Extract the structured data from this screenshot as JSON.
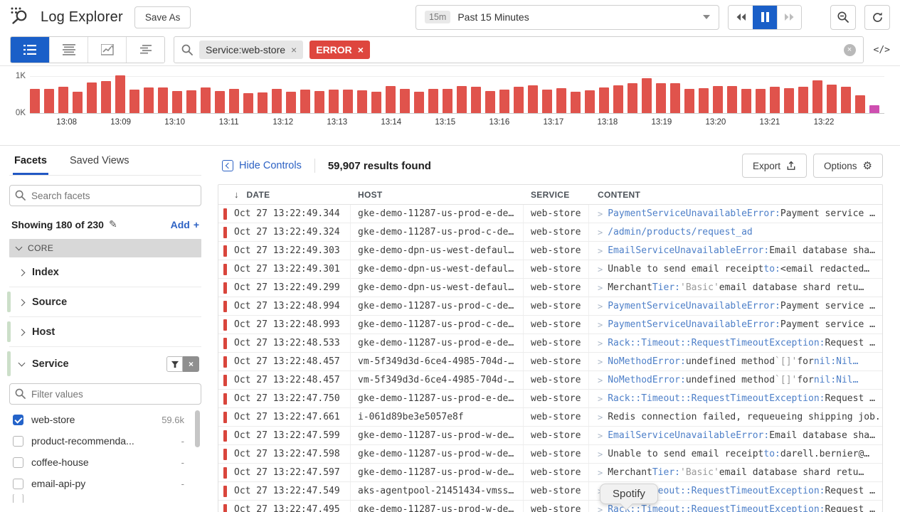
{
  "header": {
    "title": "Log Explorer",
    "save_as": "Save As",
    "time_badge": "15m",
    "time_label": "Past 15 Minutes"
  },
  "search": {
    "chips": [
      {
        "label": "Service:web-store"
      },
      {
        "label": "ERROR"
      }
    ]
  },
  "icons": {
    "close": "×",
    "sort_desc": "↓",
    "gear": "⚙",
    "pencil": "✎",
    "plus": "+",
    "code_toggle": "</>",
    "expand_chevron": ">"
  },
  "chart_data": {
    "type": "bar",
    "title": "",
    "xlabel": "",
    "ylabel": "",
    "ylim": [
      0,
      1000
    ],
    "y_ticks": [
      "0K",
      "1K"
    ],
    "grid": "horizontal-1K-line",
    "legend": false,
    "bar_color": "#e0534c",
    "final_bar_color": "#ce4fb0",
    "x_labels": [
      "13:08",
      "13:09",
      "13:10",
      "13:11",
      "13:12",
      "13:13",
      "13:14",
      "13:15",
      "13:16",
      "13:17",
      "13:18",
      "13:19",
      "13:20",
      "13:21",
      "13:22"
    ],
    "values": [
      650,
      650,
      700,
      560,
      810,
      840,
      1000,
      620,
      670,
      670,
      580,
      600,
      670,
      580,
      650,
      520,
      540,
      650,
      560,
      620,
      590,
      630,
      630,
      610,
      570,
      710,
      650,
      560,
      650,
      650,
      720,
      690,
      590,
      630,
      690,
      740,
      620,
      660,
      560,
      600,
      680,
      730,
      790,
      930,
      800,
      790,
      640,
      660,
      720,
      720,
      650,
      640,
      690,
      660,
      700,
      870,
      760,
      700,
      480,
      200
    ]
  },
  "sidebar": {
    "tabs": [
      "Facets",
      "Saved Views"
    ],
    "search_placeholder": "Search facets",
    "showing": "Showing 180 of 230",
    "add_label": "Add",
    "core_label": "CORE",
    "groups": [
      "Index",
      "Source",
      "Host",
      "Service"
    ],
    "filter_placeholder": "Filter values",
    "values": [
      {
        "label": "web-store",
        "count": "59.6k",
        "checked": true
      },
      {
        "label": "product-recommenda...",
        "count": "-",
        "checked": false
      },
      {
        "label": "coffee-house",
        "count": "-",
        "checked": false
      },
      {
        "label": "email-api-py",
        "count": "-",
        "checked": false
      }
    ]
  },
  "main": {
    "hide_controls": "Hide Controls",
    "results": "59,907 results found",
    "export_label": "Export",
    "options_label": "Options",
    "columns": [
      "DATE",
      "HOST",
      "SERVICE",
      "CONTENT"
    ],
    "tooltip": "Spotify",
    "rows": [
      {
        "date": "Oct 27 13:22:49.344",
        "host": "gke-demo-11287-us-prod-e-de…",
        "service": "web-store",
        "content": [
          [
            "PaymentServiceUnavailableError:",
            "tok"
          ],
          [
            " Payment service …",
            "plain"
          ]
        ]
      },
      {
        "date": "Oct 27 13:22:49.324",
        "host": "gke-demo-11287-us-prod-c-de…",
        "service": "web-store",
        "content": [
          [
            "/admin/products/request_ad",
            "tok"
          ]
        ]
      },
      {
        "date": "Oct 27 13:22:49.303",
        "host": "gke-demo-dpn-us-west-defaul…",
        "service": "web-store",
        "content": [
          [
            "EmailServiceUnavailableError:",
            "tok"
          ],
          [
            " Email database sha…",
            "plain"
          ]
        ]
      },
      {
        "date": "Oct 27 13:22:49.301",
        "host": "gke-demo-dpn-us-west-defaul…",
        "service": "web-store",
        "content": [
          [
            "Unable to send email receipt ",
            "plain"
          ],
          [
            "to:",
            "tok"
          ],
          [
            " <email redacted…",
            "plain"
          ]
        ]
      },
      {
        "date": "Oct 27 13:22:49.299",
        "host": "gke-demo-dpn-us-west-defaul…",
        "service": "web-store",
        "content": [
          [
            "Merchant ",
            "plain"
          ],
          [
            "Tier:",
            "tok"
          ],
          [
            " ",
            "plain"
          ],
          [
            "'Basic'",
            "dim"
          ],
          [
            " email database shard retu…",
            "plain"
          ]
        ]
      },
      {
        "date": "Oct 27 13:22:48.994",
        "host": "gke-demo-11287-us-prod-c-de…",
        "service": "web-store",
        "content": [
          [
            "PaymentServiceUnavailableError:",
            "tok"
          ],
          [
            " Payment service …",
            "plain"
          ]
        ]
      },
      {
        "date": "Oct 27 13:22:48.993",
        "host": "gke-demo-11287-us-prod-c-de…",
        "service": "web-store",
        "content": [
          [
            "PaymentServiceUnavailableError:",
            "tok"
          ],
          [
            " Payment service …",
            "plain"
          ]
        ]
      },
      {
        "date": "Oct 27 13:22:48.533",
        "host": "gke-demo-11287-us-prod-e-de…",
        "service": "web-store",
        "content": [
          [
            "Rack::Timeout::RequestTimeoutException:",
            "tok"
          ],
          [
            " Request …",
            "plain"
          ]
        ]
      },
      {
        "date": "Oct 27 13:22:48.457",
        "host": "vm-5f349d3d-6ce4-4985-704d-…",
        "service": "web-store",
        "content": [
          [
            "NoMethodError:",
            "tok"
          ],
          [
            " undefined method ",
            "plain"
          ],
          [
            "`[]'",
            "dim"
          ],
          [
            " for ",
            "plain"
          ],
          [
            "nil:Nil…",
            "tok"
          ]
        ]
      },
      {
        "date": "Oct 27 13:22:48.457",
        "host": "vm-5f349d3d-6ce4-4985-704d-…",
        "service": "web-store",
        "content": [
          [
            "NoMethodError:",
            "tok"
          ],
          [
            " undefined method ",
            "plain"
          ],
          [
            "`[]'",
            "dim"
          ],
          [
            " for ",
            "plain"
          ],
          [
            "nil:Nil…",
            "tok"
          ]
        ]
      },
      {
        "date": "Oct 27 13:22:47.750",
        "host": "gke-demo-11287-us-prod-e-de…",
        "service": "web-store",
        "content": [
          [
            "Rack::Timeout::RequestTimeoutException:",
            "tok"
          ],
          [
            " Request …",
            "plain"
          ]
        ]
      },
      {
        "date": "Oct 27 13:22:47.661",
        "host": "i-061d89be3e5057e8f",
        "service": "web-store",
        "content": [
          [
            "Redis connection failed, requeueing shipping job.",
            "plain"
          ]
        ]
      },
      {
        "date": "Oct 27 13:22:47.599",
        "host": "gke-demo-11287-us-prod-w-de…",
        "service": "web-store",
        "content": [
          [
            "EmailServiceUnavailableError:",
            "tok"
          ],
          [
            " Email database sha…",
            "plain"
          ]
        ]
      },
      {
        "date": "Oct 27 13:22:47.598",
        "host": "gke-demo-11287-us-prod-w-de…",
        "service": "web-store",
        "content": [
          [
            "Unable to send email receipt ",
            "plain"
          ],
          [
            "to:",
            "tok"
          ],
          [
            " darell.bernier@…",
            "plain"
          ]
        ]
      },
      {
        "date": "Oct 27 13:22:47.597",
        "host": "gke-demo-11287-us-prod-w-de…",
        "service": "web-store",
        "content": [
          [
            "Merchant ",
            "plain"
          ],
          [
            "Tier:",
            "tok"
          ],
          [
            " ",
            "plain"
          ],
          [
            "'Basic'",
            "dim"
          ],
          [
            " email database shard retu…",
            "plain"
          ]
        ]
      },
      {
        "date": "Oct 27 13:22:47.549",
        "host": "aks-agentpool-21451434-vmss…",
        "service": "web-store",
        "content": [
          [
            "Rack::Timeout::RequestTimeoutException:",
            "tok"
          ],
          [
            " Request …",
            "plain"
          ]
        ]
      },
      {
        "date": "Oct 27 13:22:47.495",
        "host": "gke-demo-11287-us-prod-w-de…",
        "service": "web-store",
        "content": [
          [
            "Rack::Timeout::RequestTimeoutException:",
            "tok"
          ],
          [
            " Request …",
            "plain"
          ]
        ],
        "partial": true
      }
    ]
  }
}
